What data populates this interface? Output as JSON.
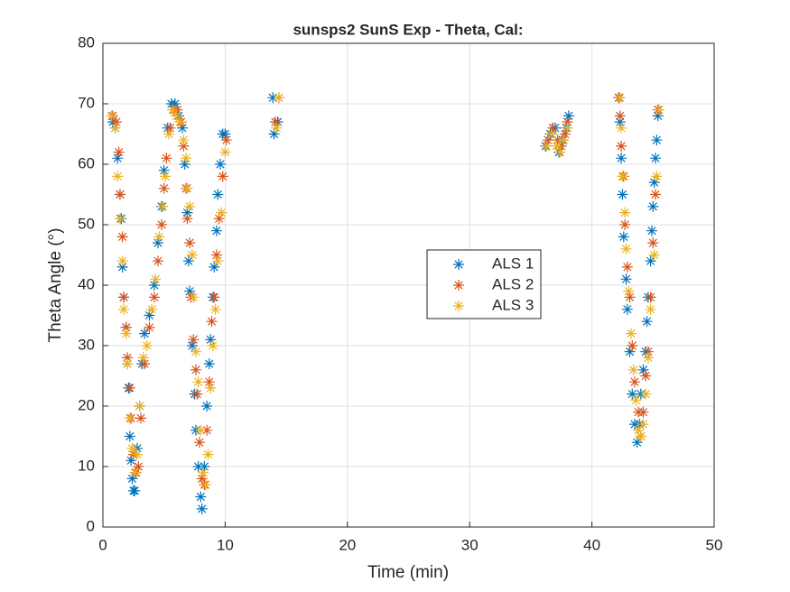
{
  "chart_data": {
    "type": "scatter",
    "title": "sunsps2 SunS Exp - Theta, Cal:",
    "x_label": "Time (min)",
    "y_label": "Theta Angle (°)",
    "xlim": [
      0,
      50
    ],
    "xticks": [
      0,
      10,
      20,
      30,
      40,
      50
    ],
    "ylim": [
      0,
      80
    ],
    "yticks": [
      0,
      10,
      20,
      30,
      40,
      50,
      60,
      70,
      80
    ],
    "grid": true,
    "legend": "center",
    "series": [
      {
        "name": "ALS 1",
        "color": "#0072BD",
        "x": [
          0.8,
          1.0,
          1.2,
          1.4,
          1.5,
          1.6,
          1.7,
          1.9,
          2.0,
          2.1,
          2.2,
          2.3,
          2.4,
          2.5,
          2.6,
          2.8,
          3.0,
          3.2,
          3.4,
          3.8,
          4.2,
          4.5,
          4.8,
          5.0,
          5.3,
          5.6,
          5.9,
          6.2,
          6.5,
          6.7,
          6.9,
          7.0,
          7.1,
          7.3,
          7.5,
          7.6,
          7.8,
          8.0,
          8.1,
          8.3,
          8.5,
          8.7,
          8.8,
          9.0,
          9.1,
          9.3,
          9.4,
          9.6,
          9.8,
          10.0,
          13.9,
          14.0,
          14.3,
          36.2,
          36.6,
          37.0,
          37.3,
          37.6,
          37.9,
          38.1,
          42.2,
          42.3,
          42.4,
          42.5,
          42.6,
          42.8,
          42.9,
          43.1,
          43.3,
          43.5,
          43.7,
          43.9,
          44.0,
          44.2,
          44.4,
          44.5,
          44.6,
          44.8,
          44.9,
          45.0,
          45.1,
          45.2,
          45.3,
          45.4
        ],
        "values": [
          67,
          66,
          61,
          55,
          51,
          43,
          38,
          33,
          27,
          23,
          15,
          11,
          8,
          6,
          6,
          13,
          20,
          27,
          32,
          35,
          40,
          47,
          53,
          59,
          66,
          70,
          70,
          68,
          66,
          60,
          52,
          44,
          39,
          30,
          22,
          16,
          10,
          5,
          3,
          10,
          20,
          27,
          31,
          38,
          43,
          49,
          55,
          60,
          65,
          65,
          71,
          65,
          67,
          63,
          65,
          66,
          62,
          64,
          66,
          68,
          71,
          67,
          61,
          55,
          48,
          41,
          36,
          29,
          22,
          17,
          14,
          17,
          22,
          26,
          29,
          34,
          38,
          44,
          49,
          53,
          57,
          61,
          64,
          68
        ]
      },
      {
        "name": "ALS 2",
        "color": "#D95319",
        "x": [
          0.8,
          1.1,
          1.3,
          1.4,
          1.6,
          1.7,
          1.9,
          2.0,
          2.2,
          2.3,
          2.5,
          2.7,
          2.9,
          3.1,
          3.4,
          3.8,
          4.2,
          4.5,
          4.8,
          5.0,
          5.2,
          5.5,
          5.8,
          6.1,
          6.4,
          6.6,
          6.8,
          6.9,
          7.1,
          7.2,
          7.4,
          7.6,
          7.7,
          7.9,
          8.1,
          8.3,
          8.5,
          8.7,
          8.9,
          9.1,
          9.3,
          9.5,
          9.8,
          10.1,
          14.1,
          14.4,
          36.4,
          36.8,
          37.2,
          37.5,
          37.8,
          38.0,
          42.2,
          42.3,
          42.4,
          42.6,
          42.7,
          42.9,
          43.1,
          43.3,
          43.5,
          43.8,
          44.0,
          44.2,
          44.4,
          44.6,
          44.8,
          45.0,
          45.2,
          45.4
        ],
        "values": [
          68,
          67,
          62,
          55,
          48,
          38,
          33,
          28,
          23,
          18,
          12,
          9,
          10,
          18,
          27,
          33,
          38,
          44,
          50,
          56,
          61,
          66,
          69,
          69,
          67,
          63,
          56,
          51,
          47,
          38,
          31,
          26,
          22,
          14,
          8,
          7,
          16,
          24,
          34,
          38,
          45,
          51,
          58,
          64,
          67,
          71,
          64,
          66,
          64,
          63,
          65,
          67,
          71,
          68,
          63,
          58,
          50,
          43,
          38,
          30,
          24,
          19,
          15,
          19,
          25,
          29,
          38,
          47,
          55,
          69
        ]
      },
      {
        "name": "ALS 3",
        "color": "#EDB120",
        "x": [
          0.7,
          1.0,
          1.2,
          1.4,
          1.6,
          1.7,
          1.9,
          2.0,
          2.2,
          2.4,
          2.6,
          2.8,
          3.0,
          3.3,
          3.6,
          4.0,
          4.3,
          4.6,
          4.9,
          5.1,
          5.4,
          5.7,
          6.0,
          6.3,
          6.6,
          6.8,
          6.9,
          7.1,
          7.3,
          7.4,
          7.6,
          7.8,
          8.0,
          8.2,
          8.4,
          8.6,
          8.8,
          9.0,
          9.2,
          9.4,
          9.7,
          10.0,
          14.2,
          14.4,
          36.3,
          36.7,
          37.1,
          37.4,
          37.7,
          38.0,
          42.3,
          42.4,
          42.5,
          42.7,
          42.8,
          43.0,
          43.2,
          43.4,
          43.6,
          43.8,
          44.0,
          44.2,
          44.4,
          44.6,
          44.8,
          45.1,
          45.3,
          45.5
        ],
        "values": [
          68,
          66,
          58,
          51,
          44,
          36,
          32,
          27,
          18,
          13,
          9,
          12,
          20,
          28,
          30,
          36,
          41,
          48,
          53,
          58,
          65,
          69,
          68,
          67,
          64,
          61,
          56,
          53,
          45,
          38,
          29,
          24,
          16,
          9,
          7,
          12,
          23,
          30,
          36,
          44,
          52,
          62,
          66,
          71,
          63,
          65,
          63,
          62,
          64,
          66,
          71,
          66,
          58,
          52,
          46,
          39,
          32,
          26,
          21,
          16,
          15,
          17,
          22,
          28,
          36,
          45,
          58,
          69
        ]
      }
    ]
  }
}
